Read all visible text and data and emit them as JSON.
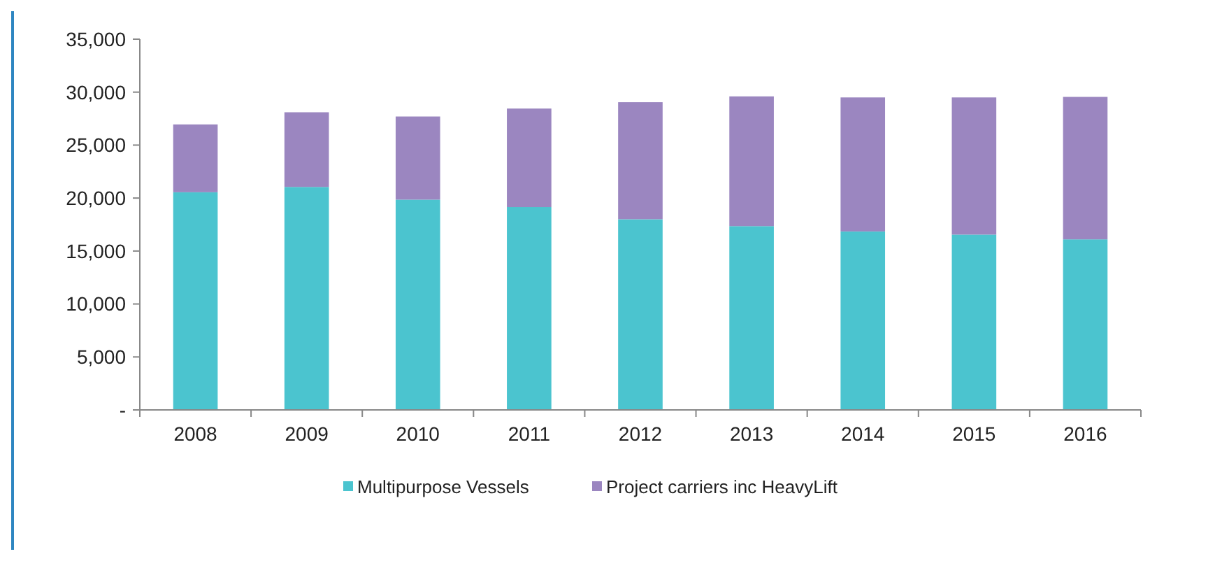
{
  "chart_data": {
    "type": "bar",
    "stacked": true,
    "categories": [
      "2008",
      "2009",
      "2010",
      "2011",
      "2012",
      "2013",
      "2014",
      "2015",
      "2016"
    ],
    "series": [
      {
        "name": "Multipurpose Vessels",
        "color": "#4bc4cf",
        "values": [
          20550,
          21050,
          19850,
          19150,
          18000,
          17350,
          16850,
          16550,
          16100
        ]
      },
      {
        "name": "Project carriers inc HeavyLift",
        "color": "#9b86c0",
        "values": [
          6400,
          7050,
          7850,
          9300,
          11050,
          12250,
          12650,
          12950,
          13450
        ]
      }
    ],
    "ylim": [
      0,
      35000
    ],
    "yticks": [
      {
        "value": 0,
        "label": "-"
      },
      {
        "value": 5000,
        "label": "5,000"
      },
      {
        "value": 10000,
        "label": "10,000"
      },
      {
        "value": 15000,
        "label": "15,000"
      },
      {
        "value": 20000,
        "label": "20,000"
      },
      {
        "value": 25000,
        "label": "25,000"
      },
      {
        "value": 30000,
        "label": "30,000"
      },
      {
        "value": 35000,
        "label": "35,000"
      }
    ],
    "grid": false,
    "legend": "bottom"
  }
}
